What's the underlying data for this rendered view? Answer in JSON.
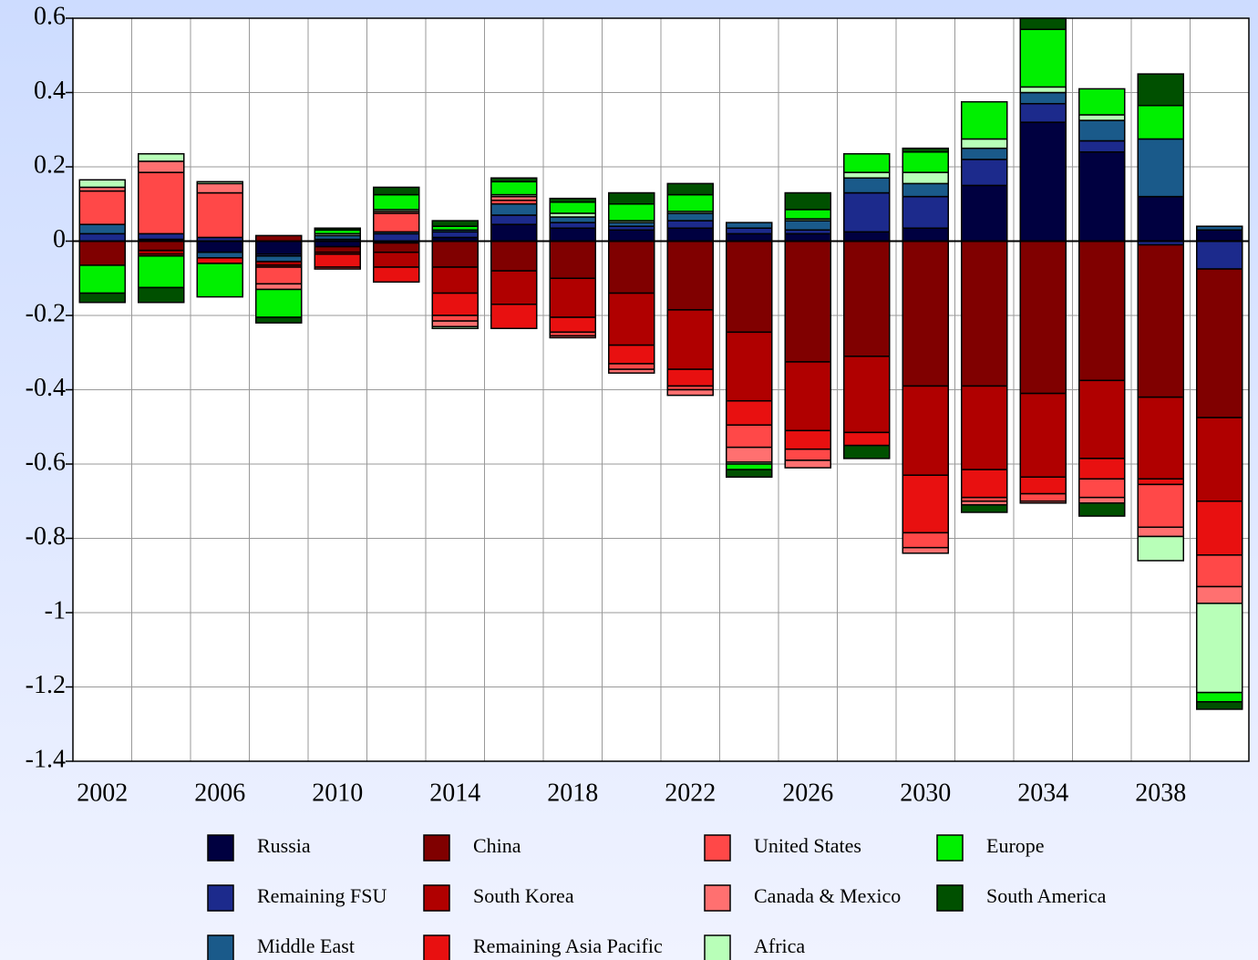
{
  "chart_data": {
    "type": "bar",
    "stacked": true,
    "categories": [
      "2002",
      null,
      "2006",
      null,
      "2010",
      null,
      "2014",
      null,
      "2018",
      null,
      "2022",
      null,
      "2026",
      null,
      "2030",
      null,
      "2034",
      null,
      "2038",
      null
    ],
    "ylim": [
      -1.4,
      0.6
    ],
    "yticks": [
      0.6,
      0.4,
      0.2,
      0,
      -0.2,
      -0.4,
      -0.6,
      -0.8,
      -1,
      -1.2,
      -1.4
    ],
    "grid": true,
    "series": [
      {
        "name": "Russia",
        "color": "#000040",
        "values": [
          0,
          0.005,
          -0.03,
          -0.035,
          -0.015,
          -0.005,
          0.01,
          0.045,
          0.035,
          0.03,
          0.035,
          0.02,
          0.02,
          0.025,
          0.035,
          0.15,
          0.32,
          0.24,
          0.12,
          0.03
        ]
      },
      {
        "name": "Remaining FSU",
        "color": "#1c2a8c",
        "values": [
          0.02,
          0.015,
          0.01,
          -0.005,
          0.005,
          0.02,
          0.015,
          0.025,
          0.015,
          0.01,
          0.02,
          0.015,
          0.01,
          0.105,
          0.085,
          0.07,
          0.05,
          0.03,
          -0.01,
          -0.075
        ]
      },
      {
        "name": "Middle East",
        "color": "#1a5a8a",
        "values": [
          0.025,
          0,
          -0.015,
          -0.015,
          0.01,
          0.005,
          0.005,
          0.03,
          0.015,
          0.01,
          0.02,
          0.015,
          0.025,
          0.04,
          0.035,
          0.03,
          0.03,
          0.055,
          0.155,
          0.01
        ]
      },
      {
        "name": "China",
        "color": "#800000",
        "values": [
          -0.065,
          -0.025,
          0,
          0.015,
          -0.015,
          -0.025,
          -0.07,
          -0.08,
          -0.1,
          -0.14,
          -0.185,
          -0.245,
          -0.325,
          -0.31,
          -0.39,
          -0.39,
          -0.41,
          -0.375,
          -0.41,
          -0.4
        ]
      },
      {
        "name": "South Korea",
        "color": "#b00000",
        "values": [
          0,
          -0.01,
          0,
          -0.01,
          -0.005,
          -0.04,
          -0.07,
          -0.09,
          -0.105,
          -0.14,
          -0.16,
          -0.185,
          -0.185,
          -0.205,
          -0.24,
          -0.225,
          -0.225,
          -0.21,
          -0.22,
          -0.225
        ]
      },
      {
        "name": "Remaining Asia Pacific",
        "color": "#e81010",
        "values": [
          0,
          -0.005,
          -0.015,
          -0.005,
          -0.035,
          -0.04,
          -0.06,
          -0.065,
          -0.04,
          -0.05,
          -0.045,
          -0.065,
          -0.05,
          -0.035,
          -0.155,
          -0.075,
          -0.045,
          -0.055,
          -0.015,
          -0.145
        ]
      },
      {
        "name": "United States",
        "color": "#ff4848",
        "values": [
          0.09,
          0.165,
          0.12,
          -0.045,
          -0.005,
          0.05,
          -0.015,
          0.01,
          -0.01,
          -0.015,
          -0.01,
          -0.06,
          -0.03,
          0,
          -0.04,
          -0.01,
          -0.02,
          -0.05,
          -0.115,
          -0.085
        ]
      },
      {
        "name": "Canada & Mexico",
        "color": "#ff7070",
        "values": [
          0.01,
          0.03,
          0.025,
          -0.015,
          0,
          0.005,
          -0.015,
          0.01,
          -0.005,
          -0.01,
          -0.015,
          -0.04,
          -0.02,
          0,
          -0.015,
          -0.01,
          -0.005,
          -0.015,
          -0.025,
          -0.045
        ]
      },
      {
        "name": "Africa",
        "color": "#b8ffb8",
        "values": [
          0.02,
          0.02,
          0.005,
          0,
          0.005,
          0.005,
          -0.005,
          0.005,
          0.01,
          0.005,
          0.005,
          -0.005,
          0.005,
          0.015,
          0.03,
          0.025,
          0.015,
          0.015,
          -0.065,
          -0.24
        ]
      },
      {
        "name": "Europe",
        "color": "#00f000",
        "values": [
          -0.075,
          -0.085,
          -0.09,
          -0.075,
          0.01,
          0.04,
          0.01,
          0.035,
          0.03,
          0.045,
          0.045,
          -0.015,
          0.025,
          0.05,
          0.055,
          0.1,
          0.155,
          0.07,
          0.09,
          -0.025
        ]
      },
      {
        "name": "South America",
        "color": "#005000",
        "values": [
          -0.025,
          -0.04,
          0,
          -0.015,
          0.005,
          0.02,
          0.015,
          0.01,
          0.01,
          0.03,
          0.03,
          -0.02,
          0.045,
          -0.035,
          0.01,
          -0.02,
          0.03,
          -0.035,
          0.085,
          -0.02
        ]
      }
    ]
  }
}
